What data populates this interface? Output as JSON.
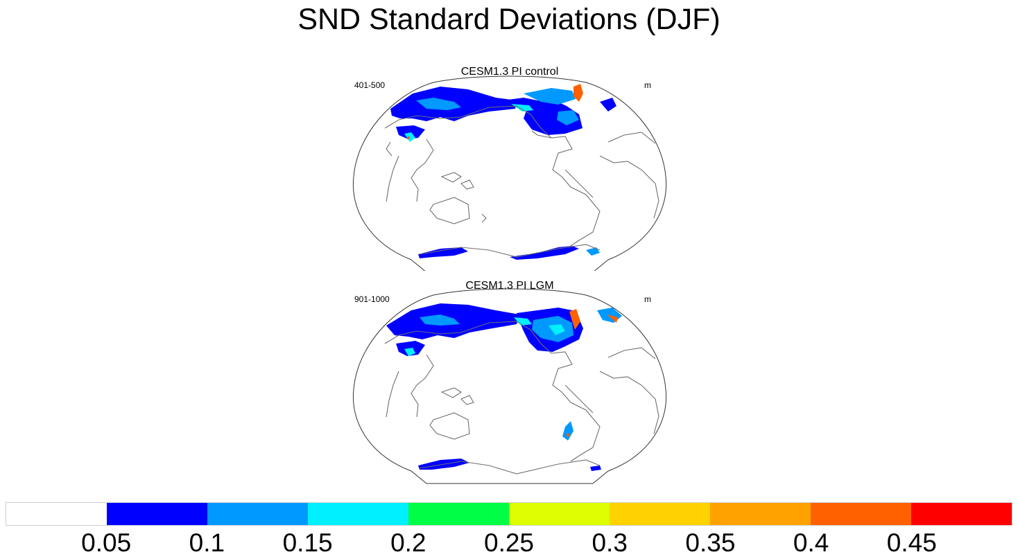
{
  "figure": {
    "title": "SND Standard Deviations (DJF)"
  },
  "panels": [
    {
      "title": "CESM1.3 PI control",
      "left_label": "401-500",
      "right_label": "m"
    },
    {
      "title": "CESM1.3 PI LGM",
      "left_label": "901-1000",
      "right_label": "m"
    }
  ],
  "colorbar": {
    "colors": [
      "#ffffff",
      "#0000ff",
      "#0099ff",
      "#00f0ff",
      "#00ff44",
      "#ddff00",
      "#ffd200",
      "#ffa200",
      "#ff6000",
      "#ff0000"
    ],
    "labels": [
      "0.05",
      "0.1",
      "0.15",
      "0.2",
      "0.25",
      "0.3",
      "0.35",
      "0.4",
      "0.45"
    ]
  },
  "map_colors": {
    "coast": "#6e6e6e",
    "frame": "#333333",
    "snow_low": "#0000ff",
    "snow_mid": "#0099ff",
    "snow_high": "#00f0ff",
    "snow_peak": "#ff6000"
  }
}
